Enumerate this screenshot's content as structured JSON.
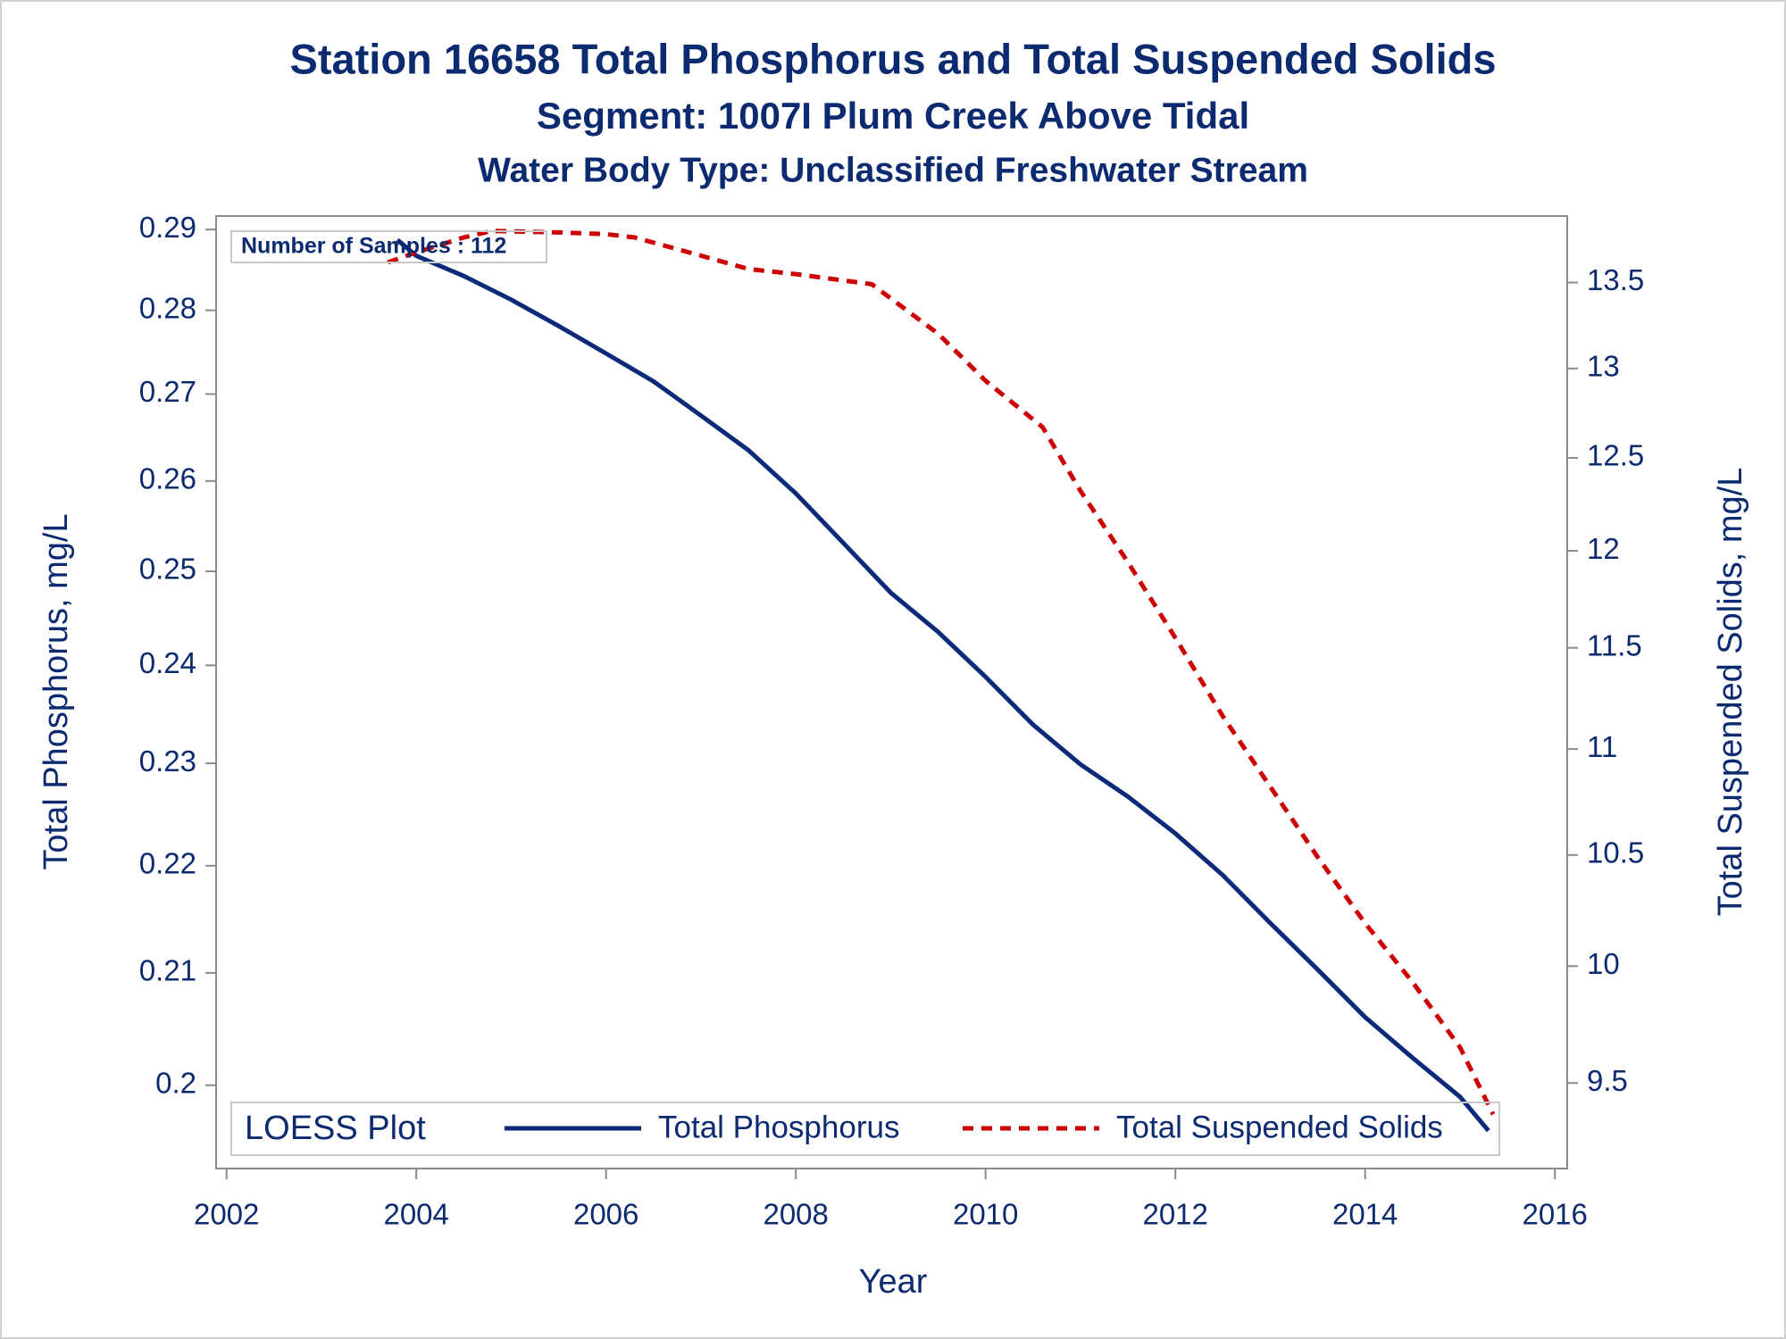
{
  "chart_data": {
    "type": "line",
    "title": "Station 16658  Total Phosphorus and Total Suspended Solids",
    "subtitle": "Segment: 1007I  Plum Creek Above Tidal",
    "subtitle2": "Water Body Type: Unclassified Freshwater Stream",
    "annotation": "Number of Samples : 112",
    "legend_title": "LOESS Plot",
    "xlabel": "Year",
    "ylabel": "Total Phosphorus, mg/L",
    "y2label": "Total Suspended Solids, mg/L",
    "xlim": [
      2001.89,
      2016.13
    ],
    "xticks": [
      2002,
      2004,
      2006,
      2008,
      2010,
      2012,
      2014,
      2016
    ],
    "ylim": [
      0.1929,
      0.2917
    ],
    "yticks": [
      0.2,
      0.21,
      0.22,
      0.23,
      0.24,
      0.25,
      0.26,
      0.27,
      0.28,
      0.29
    ],
    "ylog": true,
    "y2lim": [
      9.15,
      13.9
    ],
    "y2ticks": [
      9.5,
      10,
      10.5,
      11,
      11.5,
      12,
      12.5,
      13,
      13.5
    ],
    "y2log": true,
    "legend": "bottom",
    "series": [
      {
        "name": "Total Phosphorus",
        "color": "#0b2a7a",
        "dash": "solid",
        "x": [
          2003.8,
          2004,
          2004.5,
          2005,
          2005.5,
          2006,
          2006.5,
          2007,
          2007.5,
          2008,
          2008.5,
          2009,
          2009.5,
          2010,
          2010.5,
          2011,
          2011.5,
          2012,
          2012.5,
          2013,
          2013.5,
          2014,
          2014.5,
          2015,
          2015.3
        ],
        "values": [
          0.2887,
          0.2867,
          0.2842,
          0.2813,
          0.2781,
          0.2748,
          0.2715,
          0.2675,
          0.2635,
          0.2586,
          0.2531,
          0.2477,
          0.2435,
          0.2388,
          0.2339,
          0.2299,
          0.2267,
          0.2231,
          0.2191,
          0.2146,
          0.2103,
          0.206,
          0.2024,
          0.199,
          0.1961
        ]
      },
      {
        "name": "Total Suspended Solids",
        "color": "#cc0000",
        "dash": "dashed",
        "axis": "y2",
        "x": [
          2003.7,
          2004,
          2004.5,
          2004.8,
          2005.5,
          2006,
          2006.3,
          2007,
          2007.5,
          2008,
          2008.8,
          2009.5,
          2010,
          2010.6,
          2011,
          2011.5,
          2012,
          2012.5,
          2013,
          2013.5,
          2014,
          2014.5,
          2015,
          2015.35
        ],
        "values": [
          13.62,
          13.68,
          13.77,
          13.81,
          13.8,
          13.79,
          13.77,
          13.66,
          13.58,
          13.55,
          13.49,
          13.2,
          12.93,
          12.67,
          12.32,
          11.94,
          11.55,
          11.16,
          10.82,
          10.49,
          10.19,
          9.93,
          9.65,
          9.37
        ]
      }
    ]
  }
}
